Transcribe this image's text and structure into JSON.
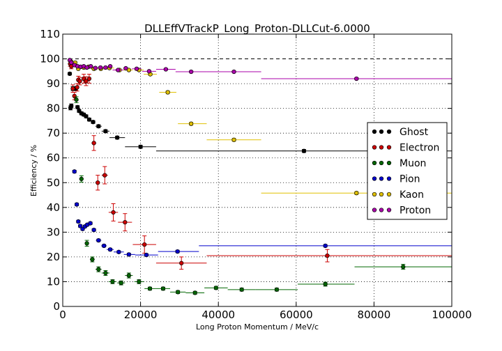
{
  "chart_data": {
    "type": "scatter",
    "title": "DLLEffVTrackP_Long_Proton-DLLCut-6.0000",
    "xlabel": "Long Proton Momentum / MeV/c",
    "ylabel": "Efficiency / %",
    "xlim": [
      0,
      100000
    ],
    "ylim": [
      0,
      110
    ],
    "xticks": [
      0,
      20000,
      40000,
      60000,
      80000,
      100000
    ],
    "yticks": [
      0,
      10,
      20,
      30,
      40,
      50,
      60,
      70,
      80,
      90,
      100,
      110
    ],
    "grid": true,
    "reference_line": 100,
    "legend_position": "right",
    "series": [
      {
        "name": "Ghost",
        "color": "#000000",
        "points": [
          {
            "x": 1800,
            "y": 94.0,
            "xlo": 1400,
            "xhi": 2200,
            "err": 0.5
          },
          {
            "x": 2000,
            "y": 80.2,
            "xlo": 1600,
            "xhi": 2400,
            "err": 0.8
          },
          {
            "x": 2200,
            "y": 81.0,
            "xlo": 1800,
            "xhi": 2600,
            "err": 0.8
          },
          {
            "x": 2600,
            "y": 88.0,
            "xlo": 2200,
            "xhi": 3000,
            "err": 0.8
          },
          {
            "x": 3000,
            "y": 88.0,
            "xlo": 2600,
            "xhi": 3400,
            "err": 0.8
          },
          {
            "x": 3400,
            "y": 88.0,
            "xlo": 3000,
            "xhi": 3800,
            "err": 0.8
          },
          {
            "x": 3800,
            "y": 80.5,
            "xlo": 3400,
            "xhi": 4200,
            "err": 0.6
          },
          {
            "x": 4200,
            "y": 79.0,
            "xlo": 3800,
            "xhi": 4600,
            "err": 0.6
          },
          {
            "x": 4800,
            "y": 78.0,
            "xlo": 4400,
            "xhi": 5200,
            "err": 0.6
          },
          {
            "x": 5400,
            "y": 77.5,
            "xlo": 5000,
            "xhi": 5800,
            "err": 0.6
          },
          {
            "x": 6000,
            "y": 76.8,
            "xlo": 5600,
            "xhi": 6400,
            "err": 0.6
          },
          {
            "x": 6800,
            "y": 75.5,
            "xlo": 6300,
            "xhi": 7300,
            "err": 0.6
          },
          {
            "x": 7800,
            "y": 74.5,
            "xlo": 7200,
            "xhi": 8400,
            "err": 0.6
          },
          {
            "x": 9200,
            "y": 72.8,
            "xlo": 8400,
            "xhi": 10000,
            "err": 0.6
          },
          {
            "x": 11000,
            "y": 70.8,
            "xlo": 10000,
            "xhi": 12000,
            "err": 0.6
          },
          {
            "x": 14000,
            "y": 68.2,
            "xlo": 12000,
            "xhi": 16000,
            "err": 0.6
          },
          {
            "x": 20000,
            "y": 64.5,
            "xlo": 16000,
            "xhi": 24000,
            "err": 0.6
          },
          {
            "x": 62000,
            "y": 62.8,
            "xlo": 24000,
            "xhi": 100000,
            "err": 0.6
          }
        ]
      },
      {
        "name": "Electron",
        "color": "#cc0000",
        "points": [
          {
            "x": 1900,
            "y": 98.0,
            "xlo": 1500,
            "xhi": 2300,
            "err": 1.0
          },
          {
            "x": 2200,
            "y": 97.0,
            "xlo": 1800,
            "xhi": 2600,
            "err": 1.0
          },
          {
            "x": 2600,
            "y": 88.0,
            "xlo": 2200,
            "xhi": 3000,
            "err": 1.5
          },
          {
            "x": 3000,
            "y": 85.0,
            "xlo": 2600,
            "xhi": 3400,
            "err": 1.5
          },
          {
            "x": 3700,
            "y": 88.5,
            "xlo": 3300,
            "xhi": 4100,
            "err": 1.5
          },
          {
            "x": 4000,
            "y": 91.5,
            "xlo": 3600,
            "xhi": 4400,
            "err": 1.5
          },
          {
            "x": 4400,
            "y": 91.0,
            "xlo": 4000,
            "xhi": 4800,
            "err": 1.5
          },
          {
            "x": 5400,
            "y": 92.0,
            "xlo": 5000,
            "xhi": 5800,
            "err": 1.8
          },
          {
            "x": 6000,
            "y": 91.0,
            "xlo": 5600,
            "xhi": 6400,
            "err": 1.8
          },
          {
            "x": 6800,
            "y": 92.0,
            "xlo": 6400,
            "xhi": 7200,
            "err": 1.8
          },
          {
            "x": 8000,
            "y": 66.0,
            "xlo": 7400,
            "xhi": 8600,
            "err": 3.0
          },
          {
            "x": 9000,
            "y": 50.0,
            "xlo": 8400,
            "xhi": 9600,
            "err": 3.0
          },
          {
            "x": 10800,
            "y": 53.0,
            "xlo": 10000,
            "xhi": 11600,
            "err": 3.5
          },
          {
            "x": 13000,
            "y": 38.0,
            "xlo": 11800,
            "xhi": 14200,
            "err": 3.5
          },
          {
            "x": 16000,
            "y": 34.0,
            "xlo": 14200,
            "xhi": 17800,
            "err": 3.5
          },
          {
            "x": 21000,
            "y": 25.0,
            "xlo": 18000,
            "xhi": 24000,
            "err": 3.5
          },
          {
            "x": 30500,
            "y": 17.5,
            "xlo": 24000,
            "xhi": 37000,
            "err": 2.5
          },
          {
            "x": 68000,
            "y": 20.5,
            "xlo": 37000,
            "xhi": 100000,
            "err": 2.5
          }
        ]
      },
      {
        "name": "Muon",
        "color": "#006600",
        "points": [
          {
            "x": 3500,
            "y": 83.5,
            "xlo": 3100,
            "xhi": 3900,
            "err": 1.2
          },
          {
            "x": 4800,
            "y": 51.5,
            "xlo": 4400,
            "xhi": 5200,
            "err": 1.3
          },
          {
            "x": 6200,
            "y": 25.5,
            "xlo": 5700,
            "xhi": 6700,
            "err": 1.2
          },
          {
            "x": 7600,
            "y": 19.0,
            "xlo": 7000,
            "xhi": 8200,
            "err": 1.0
          },
          {
            "x": 9200,
            "y": 15.0,
            "xlo": 8400,
            "xhi": 10000,
            "err": 1.0
          },
          {
            "x": 11000,
            "y": 13.5,
            "xlo": 10000,
            "xhi": 12000,
            "err": 1.0
          },
          {
            "x": 12800,
            "y": 10.0,
            "xlo": 11800,
            "xhi": 13800,
            "err": 0.8
          },
          {
            "x": 15000,
            "y": 9.5,
            "xlo": 14000,
            "xhi": 16000,
            "err": 0.8
          },
          {
            "x": 17000,
            "y": 12.5,
            "xlo": 16000,
            "xhi": 18000,
            "err": 1.0
          },
          {
            "x": 19600,
            "y": 10.0,
            "xlo": 18400,
            "xhi": 20800,
            "err": 0.8
          },
          {
            "x": 22400,
            "y": 7.2,
            "xlo": 21000,
            "xhi": 24000,
            "err": 0.6
          },
          {
            "x": 25800,
            "y": 7.2,
            "xlo": 24000,
            "xhi": 27600,
            "err": 0.6
          },
          {
            "x": 29600,
            "y": 5.8,
            "xlo": 27600,
            "xhi": 31600,
            "err": 0.6
          },
          {
            "x": 34000,
            "y": 5.5,
            "xlo": 31600,
            "xhi": 36400,
            "err": 0.6
          },
          {
            "x": 39400,
            "y": 7.5,
            "xlo": 36400,
            "xhi": 42400,
            "err": 0.6
          },
          {
            "x": 46000,
            "y": 6.8,
            "xlo": 42400,
            "xhi": 49600,
            "err": 0.6
          },
          {
            "x": 55000,
            "y": 6.8,
            "xlo": 49600,
            "xhi": 60400,
            "err": 0.6
          },
          {
            "x": 67500,
            "y": 9.0,
            "xlo": 60400,
            "xhi": 75000,
            "err": 0.8
          },
          {
            "x": 87500,
            "y": 16.0,
            "xlo": 75000,
            "xhi": 100000,
            "err": 1.0
          }
        ]
      },
      {
        "name": "Pion",
        "color": "#0000cc",
        "points": [
          {
            "x": 3000,
            "y": 54.5,
            "xlo": 2700,
            "xhi": 3300,
            "err": 0.5
          },
          {
            "x": 3600,
            "y": 41.2,
            "xlo": 3300,
            "xhi": 3900,
            "err": 0.5
          },
          {
            "x": 4000,
            "y": 34.3,
            "xlo": 3700,
            "xhi": 4300,
            "err": 0.5
          },
          {
            "x": 4500,
            "y": 32.5,
            "xlo": 4200,
            "xhi": 4800,
            "err": 0.5
          },
          {
            "x": 5100,
            "y": 31.3,
            "xlo": 4800,
            "xhi": 5400,
            "err": 0.5
          },
          {
            "x": 5700,
            "y": 32.3,
            "xlo": 5400,
            "xhi": 6000,
            "err": 0.5
          },
          {
            "x": 6300,
            "y": 33.0,
            "xlo": 6000,
            "xhi": 6600,
            "err": 0.5
          },
          {
            "x": 7100,
            "y": 33.6,
            "xlo": 6700,
            "xhi": 7500,
            "err": 0.5
          },
          {
            "x": 8000,
            "y": 30.9,
            "xlo": 7500,
            "xhi": 8500,
            "err": 0.5
          },
          {
            "x": 9200,
            "y": 26.7,
            "xlo": 8500,
            "xhi": 9900,
            "err": 0.5
          },
          {
            "x": 10600,
            "y": 24.5,
            "xlo": 9900,
            "xhi": 11300,
            "err": 0.5
          },
          {
            "x": 12200,
            "y": 23.0,
            "xlo": 11300,
            "xhi": 13100,
            "err": 0.5
          },
          {
            "x": 14400,
            "y": 22.0,
            "xlo": 13100,
            "xhi": 15700,
            "err": 0.5
          },
          {
            "x": 17000,
            "y": 21.0,
            "xlo": 15700,
            "xhi": 18600,
            "err": 0.5
          },
          {
            "x": 21500,
            "y": 20.8,
            "xlo": 18600,
            "xhi": 24500,
            "err": 0.5
          },
          {
            "x": 29500,
            "y": 22.2,
            "xlo": 24500,
            "xhi": 35000,
            "err": 0.5
          },
          {
            "x": 67500,
            "y": 24.5,
            "xlo": 35000,
            "xhi": 100000,
            "err": 0.5
          }
        ]
      },
      {
        "name": "Kaon",
        "color": "#e0c000",
        "points": [
          {
            "x": 2100,
            "y": 99.0,
            "xlo": 1700,
            "xhi": 2500,
            "err": 0.4
          },
          {
            "x": 3200,
            "y": 98.5,
            "xlo": 2800,
            "xhi": 3600,
            "err": 0.4
          },
          {
            "x": 4000,
            "y": 96.0,
            "xlo": 3600,
            "xhi": 4400,
            "err": 0.4
          },
          {
            "x": 5400,
            "y": 96.5,
            "xlo": 4800,
            "xhi": 6000,
            "err": 0.4
          },
          {
            "x": 6600,
            "y": 96.8,
            "xlo": 6000,
            "xhi": 7200,
            "err": 0.4
          },
          {
            "x": 8000,
            "y": 96.0,
            "xlo": 7200,
            "xhi": 8800,
            "err": 0.4
          },
          {
            "x": 9800,
            "y": 96.0,
            "xlo": 8800,
            "xhi": 10800,
            "err": 0.4
          },
          {
            "x": 12000,
            "y": 96.3,
            "xlo": 10800,
            "xhi": 13200,
            "err": 0.4
          },
          {
            "x": 14600,
            "y": 95.5,
            "xlo": 13200,
            "xhi": 16000,
            "err": 0.4
          },
          {
            "x": 17000,
            "y": 95.5,
            "xlo": 16000,
            "xhi": 18000,
            "err": 0.4
          },
          {
            "x": 19600,
            "y": 95.5,
            "xlo": 18400,
            "xhi": 20800,
            "err": 0.4
          },
          {
            "x": 22500,
            "y": 93.8,
            "xlo": 20800,
            "xhi": 24200,
            "err": 0.5
          },
          {
            "x": 27000,
            "y": 86.5,
            "xlo": 24800,
            "xhi": 29200,
            "err": 0.6
          },
          {
            "x": 33000,
            "y": 73.8,
            "xlo": 29600,
            "xhi": 37000,
            "err": 0.6
          },
          {
            "x": 44000,
            "y": 67.3,
            "xlo": 37000,
            "xhi": 51000,
            "err": 0.6
          },
          {
            "x": 75500,
            "y": 45.8,
            "xlo": 51000,
            "xhi": 100000,
            "err": 0.6
          }
        ]
      },
      {
        "name": "Proton",
        "color": "#aa00aa",
        "points": [
          {
            "x": 1800,
            "y": 99.5,
            "xlo": 1400,
            "xhi": 2200,
            "err": 0.3
          },
          {
            "x": 2200,
            "y": 98.5,
            "xlo": 1800,
            "xhi": 2600,
            "err": 0.3
          },
          {
            "x": 3000,
            "y": 97.5,
            "xlo": 2600,
            "xhi": 3400,
            "err": 0.3
          },
          {
            "x": 3800,
            "y": 97.0,
            "xlo": 3400,
            "xhi": 4200,
            "err": 0.3
          },
          {
            "x": 4600,
            "y": 96.8,
            "xlo": 4200,
            "xhi": 5000,
            "err": 0.3
          },
          {
            "x": 5400,
            "y": 97.0,
            "xlo": 5000,
            "xhi": 5800,
            "err": 0.3
          },
          {
            "x": 6200,
            "y": 96.5,
            "xlo": 5800,
            "xhi": 6600,
            "err": 0.3
          },
          {
            "x": 7200,
            "y": 97.0,
            "xlo": 6600,
            "xhi": 7800,
            "err": 0.3
          },
          {
            "x": 8400,
            "y": 96.3,
            "xlo": 7800,
            "xhi": 9000,
            "err": 0.3
          },
          {
            "x": 9700,
            "y": 96.5,
            "xlo": 9000,
            "xhi": 10400,
            "err": 0.3
          },
          {
            "x": 11000,
            "y": 96.5,
            "xlo": 10400,
            "xhi": 11600,
            "err": 0.3
          },
          {
            "x": 12200,
            "y": 97.0,
            "xlo": 11600,
            "xhi": 12800,
            "err": 0.3
          },
          {
            "x": 14200,
            "y": 95.5,
            "xlo": 12800,
            "xhi": 15600,
            "err": 0.3
          },
          {
            "x": 16200,
            "y": 96.2,
            "xlo": 15600,
            "xhi": 16800,
            "err": 0.3
          },
          {
            "x": 19000,
            "y": 96.0,
            "xlo": 17800,
            "xhi": 20200,
            "err": 0.3
          },
          {
            "x": 22200,
            "y": 95.0,
            "xlo": 20400,
            "xhi": 24000,
            "err": 0.3
          },
          {
            "x": 26500,
            "y": 95.8,
            "xlo": 24000,
            "xhi": 29000,
            "err": 0.3
          },
          {
            "x": 33000,
            "y": 94.8,
            "xlo": 29000,
            "xhi": 37000,
            "err": 0.3
          },
          {
            "x": 44000,
            "y": 94.8,
            "xlo": 37000,
            "xhi": 51000,
            "err": 0.3
          },
          {
            "x": 75500,
            "y": 92.0,
            "xlo": 51000,
            "xhi": 100000,
            "err": 0.4
          }
        ]
      }
    ]
  }
}
